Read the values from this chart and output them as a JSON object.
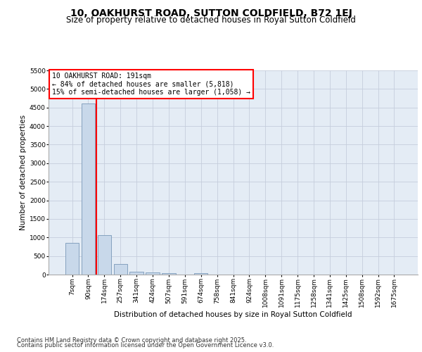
{
  "title": "10, OAKHURST ROAD, SUTTON COLDFIELD, B72 1EJ",
  "subtitle": "Size of property relative to detached houses in Royal Sutton Coldfield",
  "xlabel": "Distribution of detached houses by size in Royal Sutton Coldfield",
  "ylabel": "Number of detached properties",
  "categories": [
    "7sqm",
    "90sqm",
    "174sqm",
    "257sqm",
    "341sqm",
    "424sqm",
    "507sqm",
    "591sqm",
    "674sqm",
    "758sqm",
    "841sqm",
    "924sqm",
    "1008sqm",
    "1091sqm",
    "1175sqm",
    "1258sqm",
    "1341sqm",
    "1425sqm",
    "1508sqm",
    "1592sqm",
    "1675sqm"
  ],
  "values": [
    860,
    4600,
    1060,
    290,
    80,
    55,
    35,
    0,
    30,
    0,
    0,
    0,
    0,
    0,
    0,
    0,
    0,
    0,
    0,
    0,
    0
  ],
  "bar_color": "#c8d8ea",
  "bar_edge_color": "#7898b8",
  "grid_color": "#c5cedc",
  "background_color": "#e4ecf5",
  "red_line_index": 2,
  "annotation_text": "10 OAKHURST ROAD: 191sqm\n← 84% of detached houses are smaller (5,818)\n15% of semi-detached houses are larger (1,058) →",
  "ylim": [
    0,
    5500
  ],
  "yticks": [
    0,
    500,
    1000,
    1500,
    2000,
    2500,
    3000,
    3500,
    4000,
    4500,
    5000,
    5500
  ],
  "footnote_line1": "Contains HM Land Registry data © Crown copyright and database right 2025.",
  "footnote_line2": "Contains public sector information licensed under the Open Government Licence v3.0.",
  "title_fontsize": 10,
  "subtitle_fontsize": 8.5,
  "axis_label_fontsize": 7.5,
  "tick_fontsize": 6.5,
  "annotation_fontsize": 7,
  "footnote_fontsize": 6
}
